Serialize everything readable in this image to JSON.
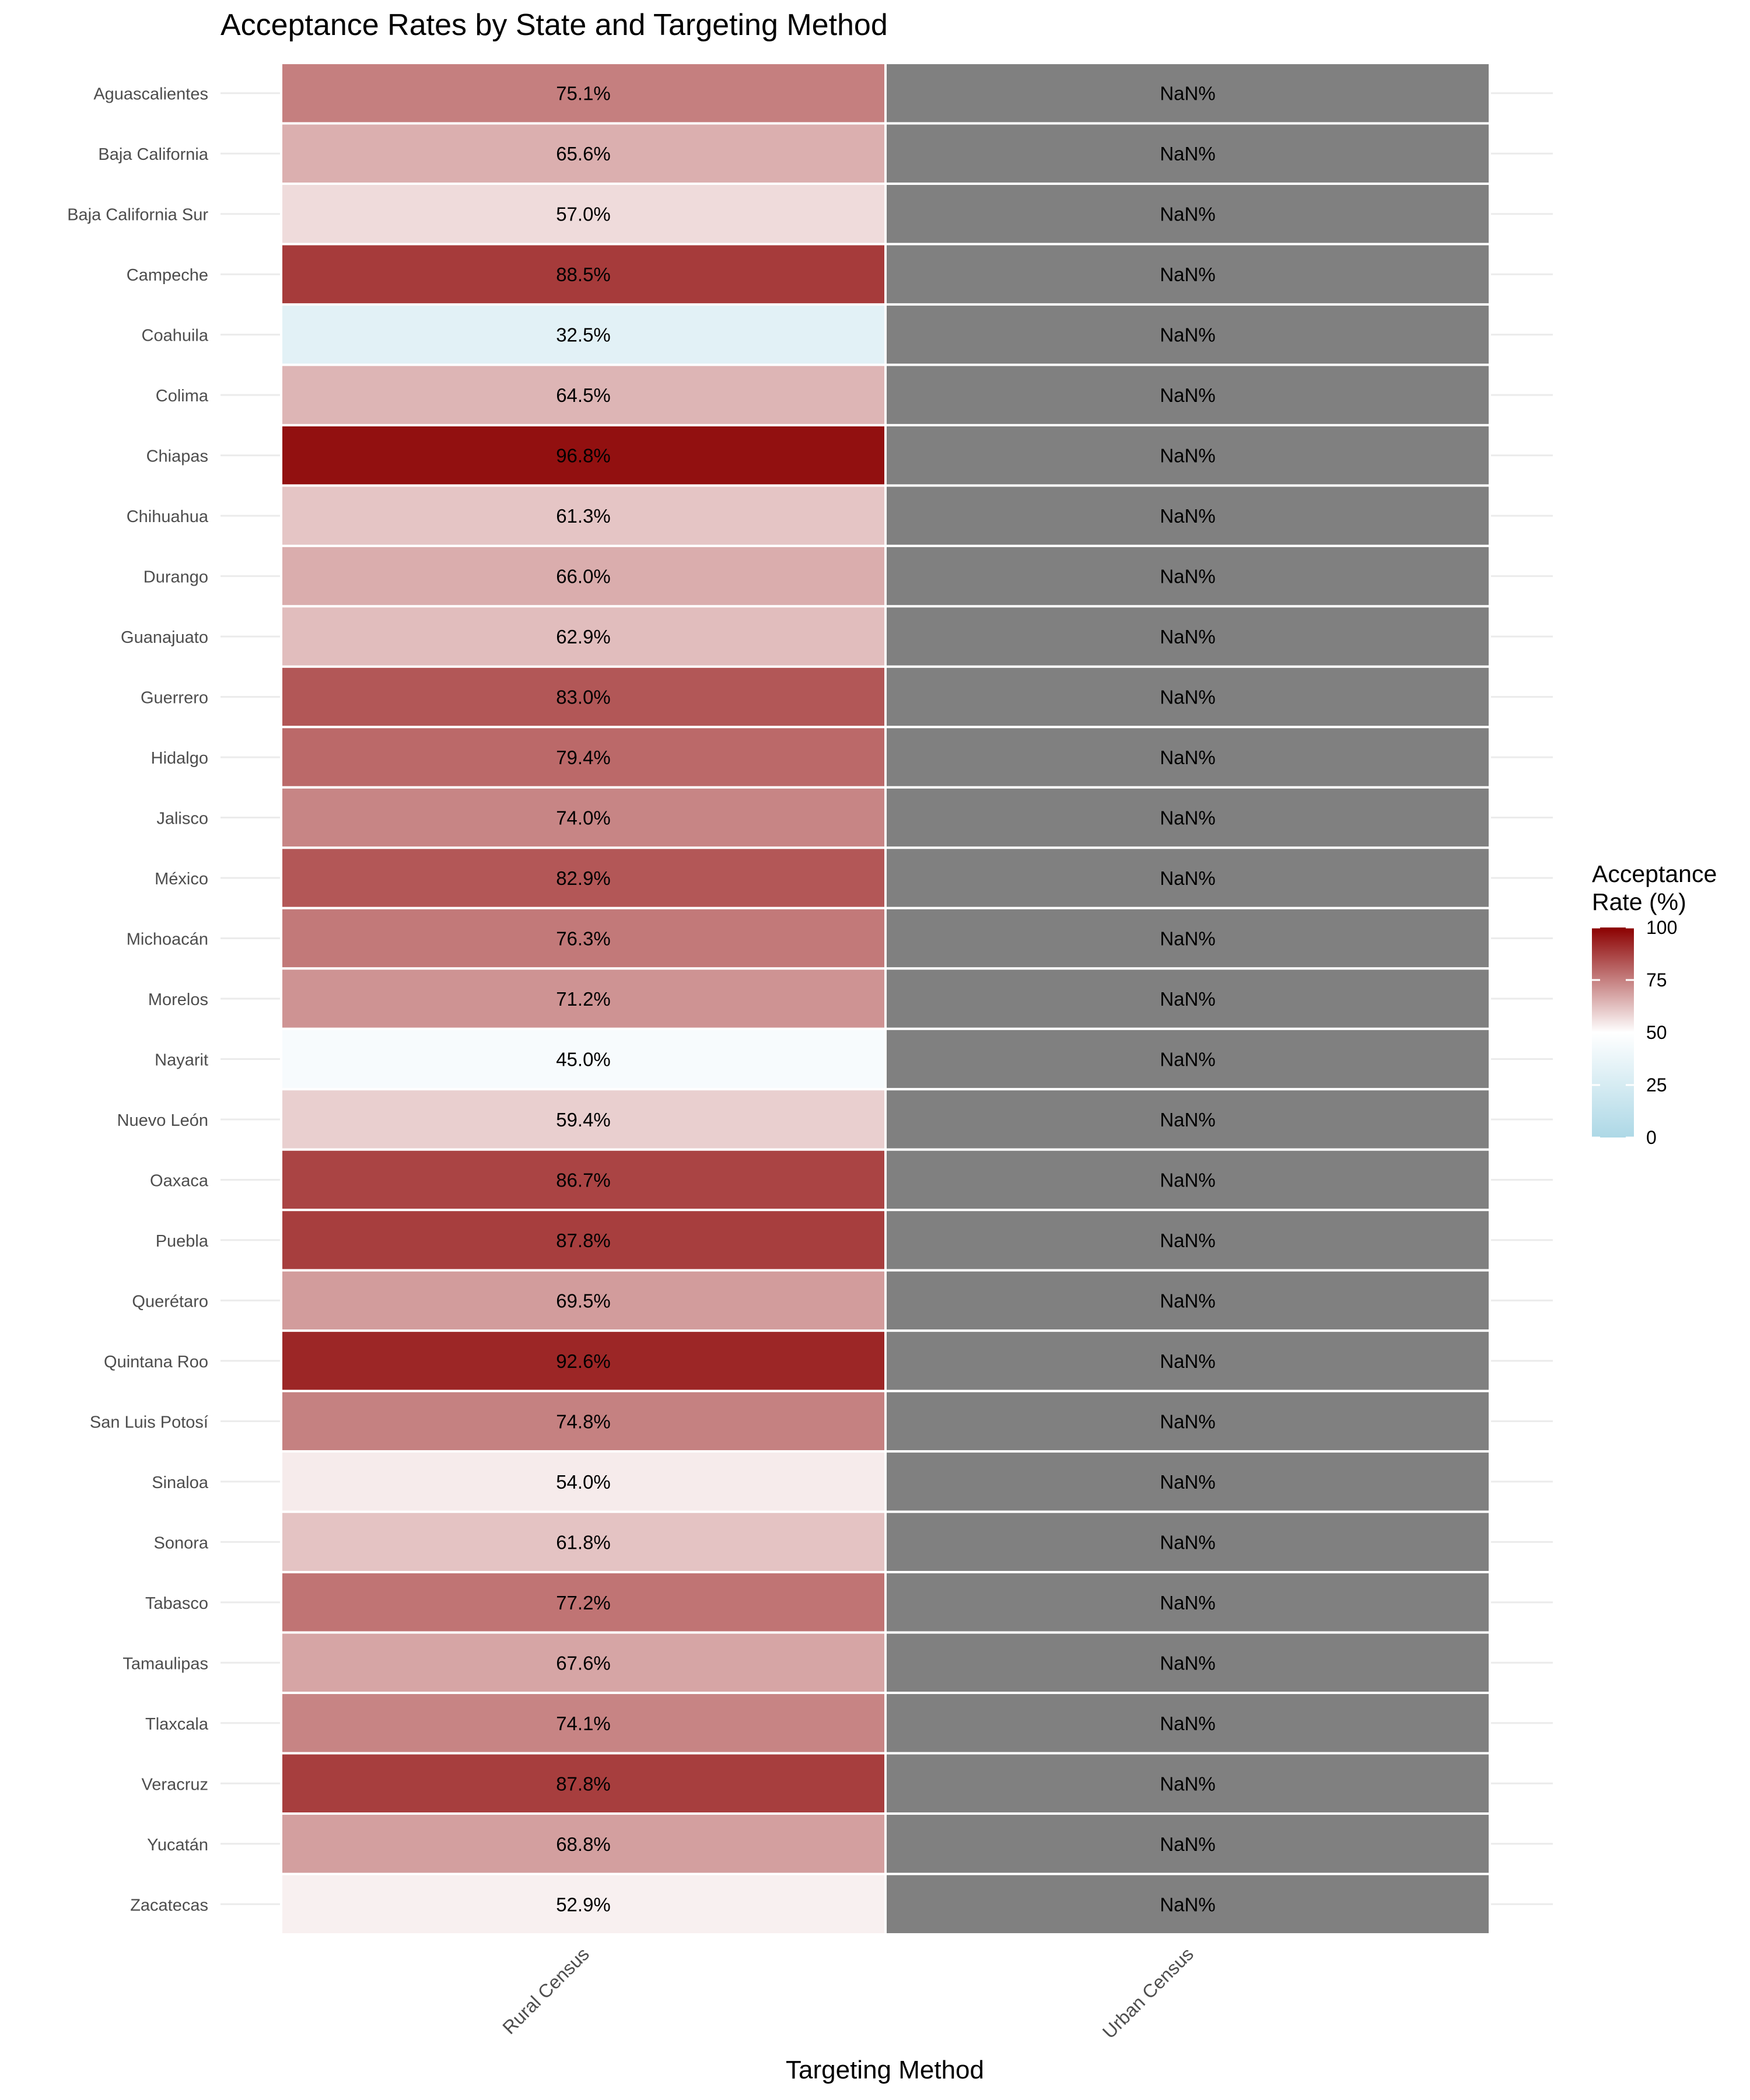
{
  "chart_data": {
    "type": "heatmap",
    "title": "Acceptance Rates by State and Targeting Method",
    "xlabel": "Targeting Method",
    "ylabel": "",
    "x_categories": [
      "Rural Census",
      "Urban Census"
    ],
    "y_categories": [
      "Aguascalientes",
      "Baja California",
      "Baja California Sur",
      "Campeche",
      "Coahuila",
      "Colima",
      "Chiapas",
      "Chihuahua",
      "Durango",
      "Guanajuato",
      "Guerrero",
      "Hidalgo",
      "Jalisco",
      "México",
      "Michoacán",
      "Morelos",
      "Nayarit",
      "Nuevo León",
      "Oaxaca",
      "Puebla",
      "Querétaro",
      "Quintana Roo",
      "San Luis Potosí",
      "Sinaloa",
      "Sonora",
      "Tabasco",
      "Tamaulipas",
      "Tlaxcala",
      "Veracruz",
      "Yucatán",
      "Zacatecas"
    ],
    "series": [
      {
        "values": [
          75.1,
          65.6,
          57.0,
          88.5,
          32.5,
          64.5,
          96.8,
          61.3,
          66.0,
          62.9,
          83.0,
          79.4,
          74.0,
          82.9,
          76.3,
          71.2,
          45.0,
          59.4,
          86.7,
          87.8,
          69.5,
          92.6,
          74.8,
          54.0,
          61.8,
          77.2,
          67.6,
          74.1,
          87.8,
          68.8,
          52.9
        ]
      },
      {
        "values": [
          null,
          null,
          null,
          null,
          null,
          null,
          null,
          null,
          null,
          null,
          null,
          null,
          null,
          null,
          null,
          null,
          null,
          null,
          null,
          null,
          null,
          null,
          null,
          null,
          null,
          null,
          null,
          null,
          null,
          null,
          null
        ]
      }
    ],
    "missing_label": "NaN%",
    "label_suffix": "%",
    "value_range": [
      0,
      100
    ],
    "legend": {
      "title": "Acceptance Rate (%)",
      "title_lines": [
        "Acceptance",
        "Rate (%)"
      ],
      "ticks": [
        100,
        75,
        50,
        25,
        0
      ],
      "placement": "right"
    },
    "colors": {
      "low": "#add8e6",
      "mid": "#ffffff",
      "high": "#8b0000",
      "midpoint": 50,
      "missing": "#808080",
      "grid": "#ebebeb",
      "cell_border": "#ffffff"
    },
    "grid": true
  }
}
